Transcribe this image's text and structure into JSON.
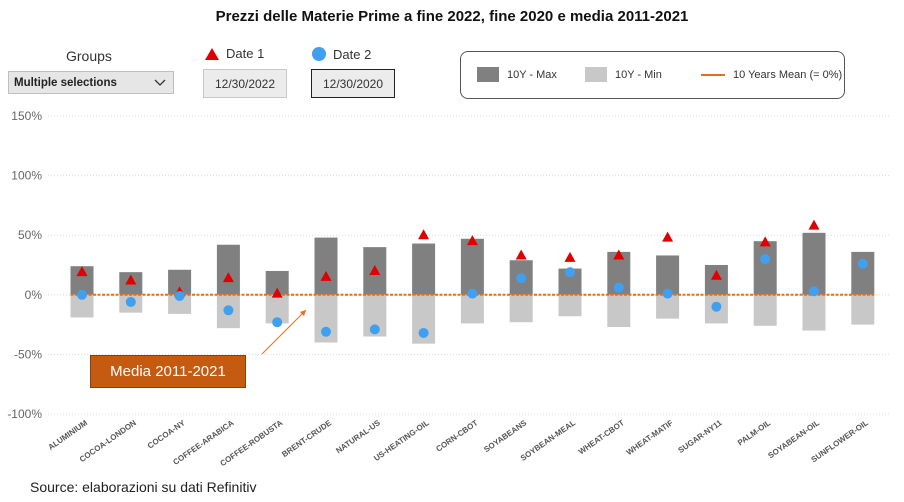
{
  "title": "Prezzi delle Materie Prime a fine 2022, fine 2020 e media 2011-2021",
  "controls": {
    "groups_label": "Groups",
    "groups_value": "Multiple selections",
    "date1_label": "Date 1",
    "date1_value": "12/30/2022",
    "date2_label": "Date 2",
    "date2_value": "12/30/2020"
  },
  "legend": {
    "max_label": "10Y - Max",
    "min_label": "10Y - Min",
    "mean_label": "10 Years Mean (= 0%)"
  },
  "annotation": "Media 2011-2021",
  "source": "Source: elaborazioni su dati Refinitiv",
  "colors": {
    "max_bar": "#808080",
    "min_bar": "#c8c8c8",
    "date1_marker": "#e00000",
    "date2_marker": "#3fa0f0",
    "mean_line": "#e0701e",
    "annotation_bg": "#c55a11"
  },
  "chart_data": {
    "type": "bar",
    "title": "Prezzi delle Materie Prime a fine 2022, fine 2020 e media 2011-2021",
    "categories": [
      "ALUMINIUM",
      "COCOA-LONDON",
      "COCOA-NY",
      "COFFEE-ARABICA",
      "COFFEE-ROBUSTA",
      "BRENT-CRUDE",
      "NATURAL-US",
      "US-HEATING-OIL",
      "CORN-CBOT",
      "SOYABEANS",
      "SOYBEAN-MEAL",
      "WHEAT-CBOT",
      "WHEAT-MATIF",
      "SUGAR-NY11",
      "PALM-OIL",
      "SOYABEAN-OIL",
      "SUNFLOWER-OIL"
    ],
    "series": [
      {
        "name": "10Y - Max",
        "values": [
          24,
          19,
          21,
          42,
          20,
          48,
          40,
          43,
          47,
          29,
          22,
          36,
          33,
          25,
          45,
          52,
          36
        ]
      },
      {
        "name": "10Y - Min",
        "values": [
          -19,
          -15,
          -16,
          -28,
          -24,
          -40,
          -35,
          -41,
          -24,
          -23,
          -18,
          -27,
          -20,
          -24,
          -26,
          -30,
          -25
        ]
      },
      {
        "name": "Date 1",
        "values": [
          19,
          12,
          2,
          14,
          1,
          15,
          20,
          50,
          45,
          33,
          31,
          33,
          48,
          16,
          44,
          58,
          null
        ]
      },
      {
        "name": "Date 2",
        "values": [
          0,
          -6,
          -1,
          -13,
          -23,
          -31,
          -29,
          -32,
          1,
          14,
          19,
          6,
          1,
          -10,
          30,
          3,
          26
        ]
      }
    ],
    "mean": 0,
    "ylim": [
      -100,
      150
    ],
    "yticks": [
      150,
      100,
      50,
      0,
      -50,
      -100
    ],
    "ytick_labels": [
      "150%",
      "100%",
      "50%",
      "0%",
      "-50%",
      "-100%"
    ],
    "xlabel": "",
    "ylabel": "",
    "grid": true
  }
}
